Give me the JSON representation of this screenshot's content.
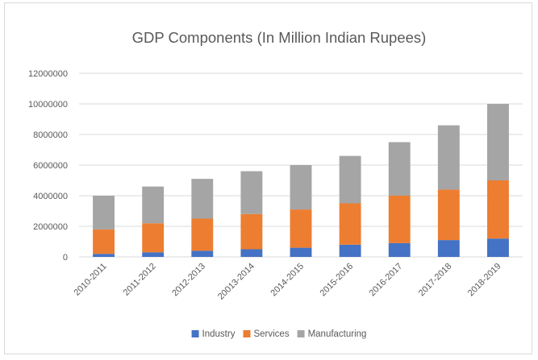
{
  "chart_data": {
    "type": "bar",
    "stacked": true,
    "title": "GDP Components (In Million Indian Rupees)",
    "categories": [
      "2010-2011",
      "2011-2012",
      "2012-2013",
      "20013-2014",
      "2014-2015",
      "2015-2016",
      "2016-2017",
      "2017-2018",
      "2018-2019"
    ],
    "series": [
      {
        "name": "Industry",
        "color": "#4472c4",
        "values": [
          200000,
          300000,
          400000,
          500000,
          600000,
          800000,
          900000,
          1100000,
          1200000
        ]
      },
      {
        "name": "Services",
        "color": "#ed7d31",
        "values": [
          1600000,
          1900000,
          2100000,
          2300000,
          2500000,
          2700000,
          3100000,
          3300000,
          3800000
        ]
      },
      {
        "name": "Manufacturing",
        "color": "#a5a5a5",
        "values": [
          2200000,
          2400000,
          2600000,
          2800000,
          2900000,
          3100000,
          3500000,
          4200000,
          5000000
        ]
      }
    ],
    "ylim": [
      0,
      12000000
    ],
    "yticks": [
      "0",
      "2000000",
      "4000000",
      "6000000",
      "8000000",
      "10000000",
      "12000000"
    ],
    "grid": true,
    "legend_position": "bottom"
  }
}
